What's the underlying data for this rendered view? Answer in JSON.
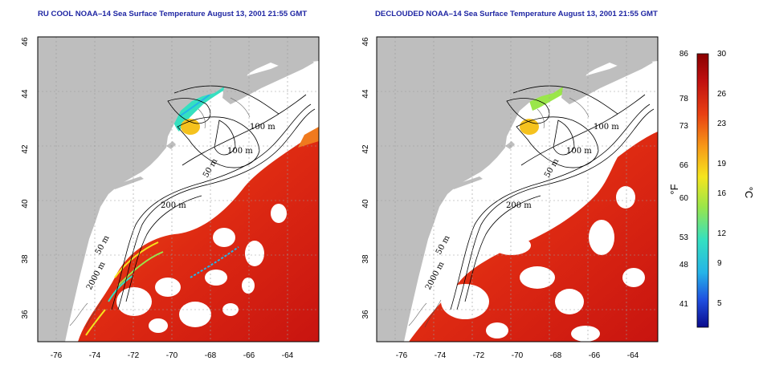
{
  "maps": [
    {
      "title": "RU COOL NOAA–14 Sea Surface Temperature August 13, 2001 21:55 GMT",
      "lat_ticks": [
        "46",
        "44",
        "42",
        "40",
        "38",
        "36"
      ],
      "lon_ticks": [
        "-76",
        "-74",
        "-72",
        "-70",
        "-68",
        "-66",
        "-64"
      ],
      "contour_labels": [
        "100 m",
        "100 m",
        "50 m",
        "200 m",
        "50 m",
        "2000 m"
      ]
    },
    {
      "title": "DECLOUDED NOAA–14 Sea Surface Temperature August 13, 2001 21:55 GMT",
      "lat_ticks": [
        "46",
        "44",
        "42",
        "40",
        "38",
        "36"
      ],
      "lon_ticks": [
        "-76",
        "-74",
        "-72",
        "-70",
        "-68",
        "-66",
        "-64"
      ],
      "contour_labels": [
        "100 m",
        "100 m",
        "50 m",
        "200 m",
        "50 m",
        "2000 m"
      ]
    }
  ],
  "colorbar": {
    "fahrenheit_ticks": [
      "86",
      "78",
      "73",
      "66",
      "60",
      "53",
      "48",
      "41"
    ],
    "celsius_ticks": [
      "30",
      "26",
      "23",
      "19",
      "16",
      "12",
      "9",
      "5"
    ],
    "fahrenheit_unit": "°F",
    "celsius_unit": "°C",
    "colors": [
      "#0b0b8c",
      "#1f4fe0",
      "#25b4e8",
      "#35e0c0",
      "#9ae64a",
      "#f5e51e",
      "#f79a18",
      "#e84012",
      "#c01010",
      "#8a0000"
    ]
  },
  "colors": {
    "land": "#bebebe",
    "ocean": "#ffffff",
    "title": "#1f26a3",
    "grid": "#9a9a9a"
  }
}
